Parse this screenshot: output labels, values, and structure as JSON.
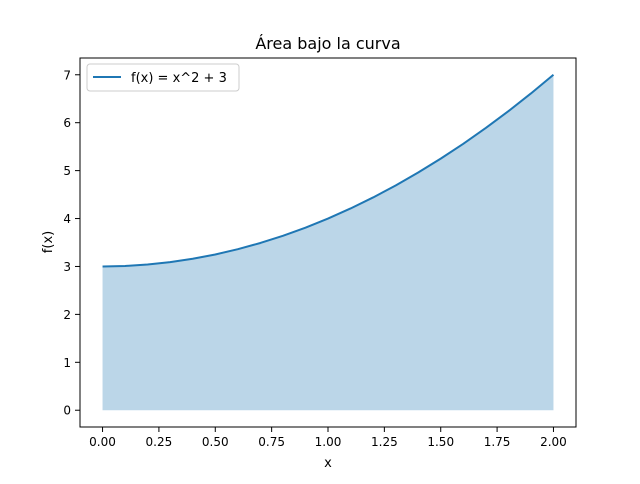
{
  "chart_data": {
    "type": "area",
    "title": "Área bajo la curva",
    "xlabel": "x",
    "ylabel": "f(x)",
    "function": "x^2 + 3",
    "xlim": [
      -0.1,
      2.1
    ],
    "ylim": [
      -0.35,
      7.35
    ],
    "x_ticks": [
      0.0,
      0.25,
      0.5,
      0.75,
      1.0,
      1.25,
      1.5,
      1.75,
      2.0
    ],
    "x_tick_labels": [
      "0.00",
      "0.25",
      "0.50",
      "0.75",
      "1.00",
      "1.25",
      "1.50",
      "1.75",
      "2.00"
    ],
    "y_ticks": [
      0,
      1,
      2,
      3,
      4,
      5,
      6,
      7
    ],
    "y_tick_labels": [
      "0",
      "1",
      "2",
      "3",
      "4",
      "5",
      "6",
      "7"
    ],
    "series": [
      {
        "name": "f(x) = x^2 + 3",
        "x": [
          0.0,
          0.1,
          0.2,
          0.3,
          0.4,
          0.5,
          0.6,
          0.7,
          0.8,
          0.9,
          1.0,
          1.1,
          1.2,
          1.3,
          1.4,
          1.5,
          1.6,
          1.7,
          1.8,
          1.9,
          2.0
        ],
        "y": [
          3.0,
          3.01,
          3.04,
          3.09,
          3.16,
          3.25,
          3.36,
          3.49,
          3.64,
          3.81,
          4.0,
          4.21,
          4.44,
          4.69,
          4.96,
          5.25,
          5.56,
          5.89,
          6.24,
          6.61,
          7.0
        ]
      }
    ],
    "fill": {
      "between": [
        0,
        "f(x)"
      ],
      "x_range": [
        0.0,
        2.0
      ],
      "color": "#1f77b4",
      "opacity": 0.3
    },
    "line_color": "#1f77b4",
    "legend": {
      "position": "top-left",
      "entries": [
        "f(x) = x^2 + 3"
      ]
    },
    "grid": false
  }
}
